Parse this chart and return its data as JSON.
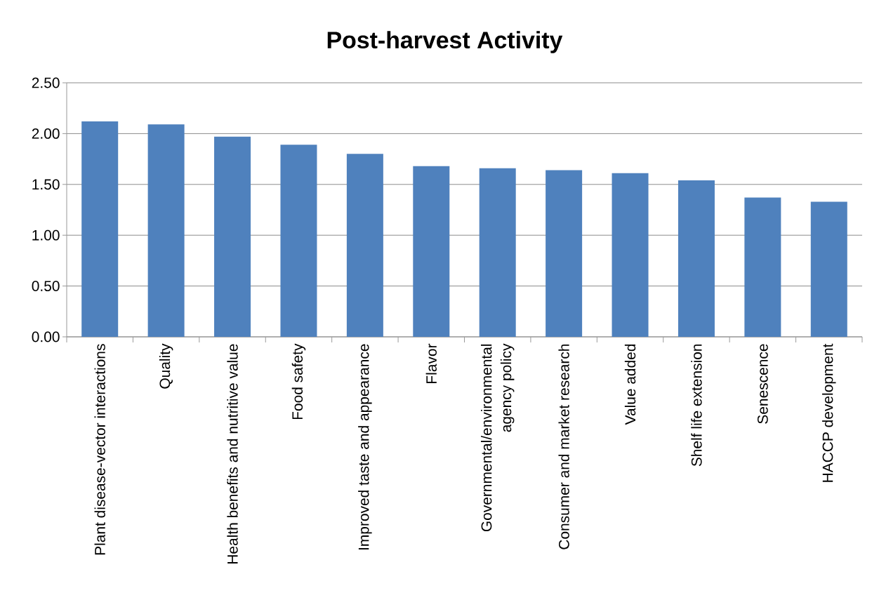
{
  "chart_data": {
    "type": "bar",
    "title": "Post-harvest Activity",
    "categories": [
      "Plant disease-vector interactions",
      "Quality",
      "Health benefits and nutritive value",
      "Food safety",
      "Improved taste and appearance",
      "Flavor",
      "Governmental/environmental agency policy",
      "Consumer and market research",
      "Value added",
      "Shelf life extension",
      "Senescence",
      "HACCP development"
    ],
    "values": [
      2.12,
      2.09,
      1.97,
      1.89,
      1.8,
      1.68,
      1.66,
      1.64,
      1.61,
      1.54,
      1.37,
      1.33
    ],
    "color": "#4f81bd",
    "ylim": [
      0,
      2.5
    ],
    "yticks": [
      {
        "value": 0,
        "label": "0.00"
      },
      {
        "value": 0.5,
        "label": "0.50"
      },
      {
        "value": 1,
        "label": "1.00"
      },
      {
        "value": 1.5,
        "label": "1.50"
      },
      {
        "value": 2,
        "label": "2.00"
      },
      {
        "value": 2.5,
        "label": "2.50"
      }
    ],
    "grid": "y"
  }
}
